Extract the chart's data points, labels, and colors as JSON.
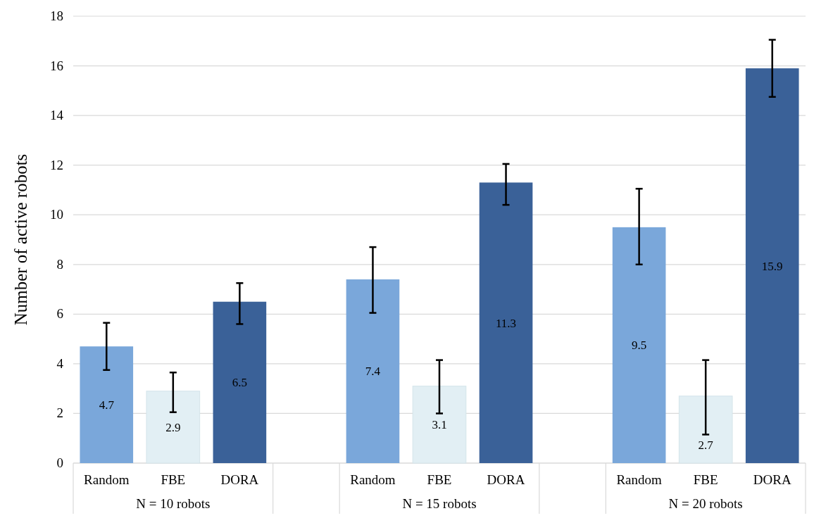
{
  "chart_data": {
    "type": "bar",
    "ylabel": "Number of active robots",
    "categories": [
      "N = 10 robots",
      "N = 15 robots",
      "N = 20 robots"
    ],
    "series": [
      {
        "name": "Random",
        "color": "#7aa7da",
        "values": [
          4.7,
          7.4,
          9.5
        ],
        "errors": [
          [
            3.75,
            5.65
          ],
          [
            6.05,
            8.7
          ],
          [
            8.0,
            11.05
          ]
        ]
      },
      {
        "name": "FBE",
        "color": "#e2eff4",
        "values": [
          2.9,
          3.1,
          2.7
        ],
        "errors": [
          [
            2.05,
            3.65
          ],
          [
            2.0,
            4.15
          ],
          [
            1.15,
            4.15
          ]
        ]
      },
      {
        "name": "DORA",
        "color": "#3a6198",
        "values": [
          6.5,
          11.3,
          15.9
        ],
        "errors": [
          [
            5.6,
            7.25
          ],
          [
            10.4,
            12.05
          ],
          [
            14.75,
            17.05
          ]
        ]
      }
    ],
    "ylim": [
      0,
      18
    ],
    "yticks": [
      0,
      2,
      4,
      6,
      8,
      10,
      12,
      14,
      16,
      18
    ],
    "grid": "y",
    "data_labels": true
  }
}
